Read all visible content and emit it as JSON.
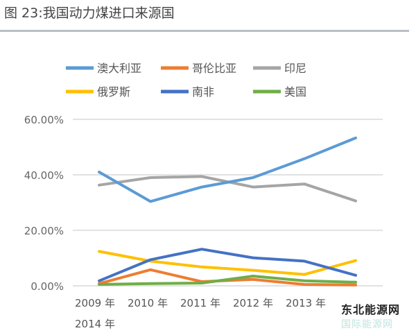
{
  "title": "图 23:我国动力煤进口来源国",
  "watermark": {
    "primary": "东北能源网",
    "secondary": "国际能源网"
  },
  "chart_data": {
    "type": "line",
    "title": "图 23:我国动力煤进口来源国",
    "xlabel": "",
    "ylabel": "",
    "categories": [
      "2009 年",
      "2010 年",
      "2011 年",
      "2012 年",
      "2013 年",
      "2014 年"
    ],
    "yticks": [
      "0.00%",
      "20.00%",
      "40.00%",
      "60.00%"
    ],
    "ylim": [
      0,
      60
    ],
    "grid": true,
    "legend_position": "top",
    "series": [
      {
        "name": "澳大利亚",
        "color": "#5b9bd5",
        "values": [
          41,
          30.4,
          35.6,
          39,
          45.8,
          53.3
        ]
      },
      {
        "name": "哥伦比亚",
        "color": "#ed7d31",
        "values": [
          0.8,
          5.8,
          1.5,
          2.3,
          0.5,
          0.3
        ]
      },
      {
        "name": "印尼",
        "color": "#a5a5a5",
        "values": [
          36.3,
          39,
          39.4,
          35.6,
          36.7,
          30.6
        ]
      },
      {
        "name": "俄罗斯",
        "color": "#ffc000",
        "values": [
          12.4,
          8.9,
          6.8,
          5.6,
          4.1,
          9.1
        ]
      },
      {
        "name": "南非",
        "color": "#4472c4",
        "values": [
          1.8,
          9.4,
          13.2,
          10.1,
          8.9,
          3.8
        ]
      },
      {
        "name": "美国",
        "color": "#70ad47",
        "values": [
          0.5,
          0.8,
          1.0,
          3.5,
          1.8,
          1.3
        ]
      }
    ]
  }
}
